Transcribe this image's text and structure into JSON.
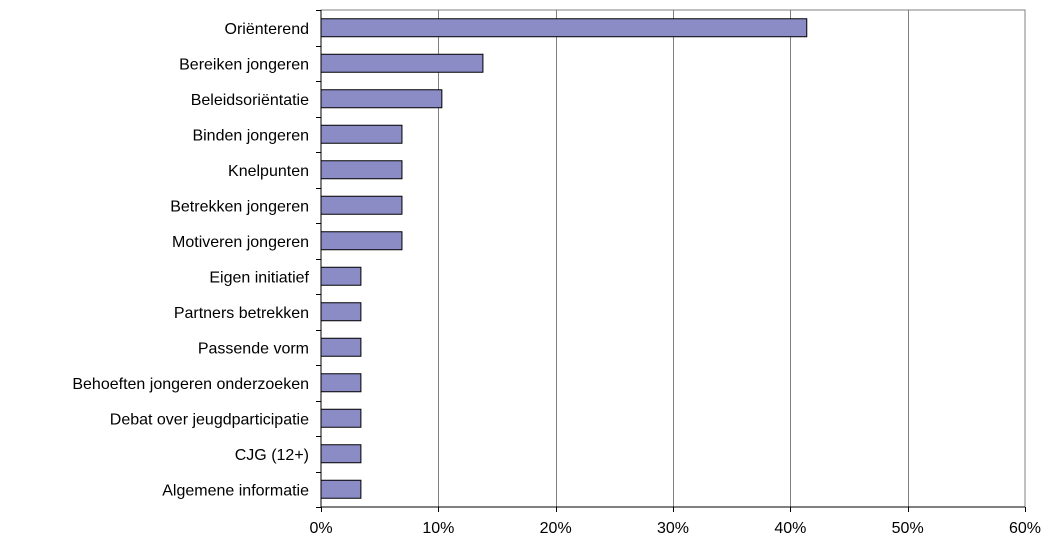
{
  "chart_data": {
    "type": "bar",
    "orientation": "horizontal",
    "categories": [
      "Oriënterend",
      "Bereiken jongeren",
      "Beleidsoriëntatie",
      "Binden jongeren",
      "Knelpunten",
      "Betrekken jongeren",
      "Motiveren jongeren",
      "Eigen initiatief",
      "Partners betrekken",
      "Passende vorm",
      "Behoeften jongeren onderzoeken",
      "Debat over jeugdparticipatie",
      "CJG (12+)",
      "Algemene informatie"
    ],
    "values": [
      41.4,
      13.8,
      10.3,
      6.9,
      6.9,
      6.9,
      6.9,
      3.4,
      3.4,
      3.4,
      3.4,
      3.4,
      3.4,
      3.4
    ],
    "xlim": [
      0,
      60
    ],
    "x_ticks": [
      0,
      10,
      20,
      30,
      40,
      50,
      60
    ],
    "x_tick_labels": [
      "0%",
      "10%",
      "20%",
      "30%",
      "40%",
      "50%",
      "60%"
    ],
    "title": "",
    "xlabel": "",
    "ylabel": "",
    "grid": "vertical",
    "legend": "none",
    "bar_color": "#8b8bc6",
    "bar_edge_color": "#000000"
  }
}
